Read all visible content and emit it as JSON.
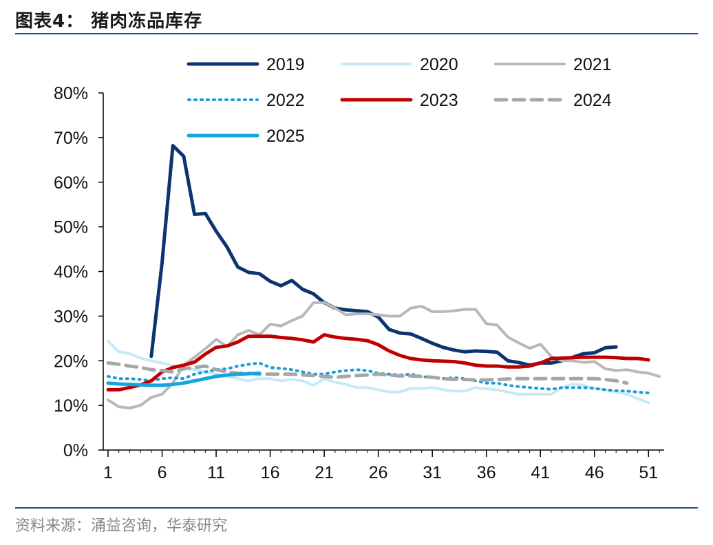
{
  "header": {
    "title": "图表4：  猪肉冻品库存"
  },
  "footer": {
    "source": "资料来源：涌益咨询，华泰研究"
  },
  "chart_data": {
    "type": "line",
    "title": "猪肉冻品库存",
    "xlabel": "",
    "ylabel": "",
    "xlim": [
      1,
      52
    ],
    "ylim": [
      0,
      0.8
    ],
    "x_ticks": [
      1,
      6,
      11,
      16,
      21,
      26,
      31,
      36,
      41,
      46,
      51
    ],
    "x_tick_labels": [
      "1",
      "6",
      "11",
      "16",
      "21",
      "26",
      "31",
      "36",
      "41",
      "46",
      "51"
    ],
    "y_ticks": [
      0,
      0.1,
      0.2,
      0.3,
      0.4,
      0.5,
      0.6,
      0.7,
      0.8
    ],
    "y_tick_labels": [
      "0%",
      "10%",
      "20%",
      "30%",
      "40%",
      "50%",
      "60%",
      "70%",
      "80%"
    ],
    "legend_position": "top",
    "series": [
      {
        "name": "2019",
        "color": "#0b3470",
        "style": "solid",
        "width": 5,
        "start": 5,
        "values": [
          0.21,
          0.42,
          0.682,
          0.658,
          0.528,
          0.53,
          0.49,
          0.455,
          0.41,
          0.398,
          0.395,
          0.378,
          0.368,
          0.38,
          0.36,
          0.35,
          0.33,
          0.318,
          0.314,
          0.312,
          0.31,
          0.298,
          0.27,
          0.262,
          0.26,
          0.25,
          0.239,
          0.23,
          0.224,
          0.22,
          0.222,
          0.221,
          0.219,
          0.2,
          0.196,
          0.19,
          0.195,
          0.195,
          0.2,
          0.208,
          0.216,
          0.218,
          0.229,
          0.231
        ]
      },
      {
        "name": "2020",
        "color": "#c5eaf7",
        "style": "solid",
        "width": 4,
        "start": 1,
        "values": [
          0.244,
          0.22,
          0.216,
          0.206,
          0.2,
          0.195,
          0.188,
          0.184,
          0.18,
          0.175,
          0.17,
          0.165,
          0.16,
          0.155,
          0.16,
          0.16,
          0.155,
          0.158,
          0.155,
          0.145,
          0.16,
          0.152,
          0.147,
          0.14,
          0.14,
          0.135,
          0.13,
          0.13,
          0.138,
          0.138,
          0.14,
          0.135,
          0.132,
          0.132,
          0.14,
          0.137,
          0.135,
          0.13,
          0.125,
          0.125,
          0.125,
          0.125,
          0.14,
          0.148,
          0.145,
          0.138,
          0.135,
          0.13,
          0.125,
          0.115,
          0.106
        ]
      },
      {
        "name": "2021",
        "color": "#b8b8b8",
        "style": "solid",
        "width": 4,
        "start": 1,
        "values": [
          0.112,
          0.097,
          0.094,
          0.1,
          0.118,
          0.125,
          0.15,
          0.19,
          0.208,
          0.227,
          0.248,
          0.232,
          0.258,
          0.268,
          0.258,
          0.282,
          0.278,
          0.29,
          0.3,
          0.33,
          0.33,
          0.318,
          0.303,
          0.305,
          0.305,
          0.303,
          0.3,
          0.3,
          0.318,
          0.322,
          0.31,
          0.31,
          0.312,
          0.315,
          0.315,
          0.283,
          0.28,
          0.253,
          0.24,
          0.228,
          0.237,
          0.21,
          0.2,
          0.2,
          0.196,
          0.198,
          0.182,
          0.178,
          0.18,
          0.175,
          0.172,
          0.165
        ]
      },
      {
        "name": "2022",
        "color": "#1b9cd8",
        "style": "dotted",
        "width": 4,
        "start": 1,
        "values": [
          0.165,
          0.16,
          0.16,
          0.158,
          0.155,
          0.16,
          0.162,
          0.16,
          0.17,
          0.175,
          0.18,
          0.182,
          0.188,
          0.192,
          0.195,
          0.185,
          0.183,
          0.18,
          0.175,
          0.17,
          0.17,
          0.175,
          0.178,
          0.18,
          0.178,
          0.172,
          0.17,
          0.168,
          0.17,
          0.165,
          0.162,
          0.16,
          0.162,
          0.16,
          0.155,
          0.15,
          0.15,
          0.145,
          0.142,
          0.14,
          0.138,
          0.136,
          0.14,
          0.14,
          0.14,
          0.138,
          0.135,
          0.133,
          0.132,
          0.13,
          0.128
        ]
      },
      {
        "name": "2023",
        "color": "#c00000",
        "style": "solid",
        "width": 5,
        "start": 1,
        "values": [
          0.135,
          0.135,
          0.14,
          0.146,
          0.155,
          0.175,
          0.185,
          0.19,
          0.197,
          0.215,
          0.23,
          0.233,
          0.242,
          0.255,
          0.255,
          0.255,
          0.252,
          0.25,
          0.247,
          0.242,
          0.258,
          0.253,
          0.25,
          0.248,
          0.245,
          0.236,
          0.222,
          0.212,
          0.205,
          0.202,
          0.2,
          0.199,
          0.198,
          0.195,
          0.19,
          0.188,
          0.188,
          0.186,
          0.186,
          0.188,
          0.195,
          0.205,
          0.206,
          0.207,
          0.208,
          0.208,
          0.208,
          0.207,
          0.205,
          0.205,
          0.202
        ]
      },
      {
        "name": "2024",
        "color": "#a6a6a6",
        "style": "dashed",
        "width": 5,
        "start": 1,
        "values": [
          0.195,
          0.192,
          0.188,
          0.185,
          0.18,
          0.178,
          0.175,
          0.182,
          0.185,
          0.188,
          0.18,
          0.175,
          0.172,
          0.172,
          0.17,
          0.17,
          0.17,
          0.17,
          0.168,
          0.167,
          0.165,
          0.163,
          0.165,
          0.167,
          0.168,
          0.17,
          0.168,
          0.166,
          0.166,
          0.165,
          0.163,
          0.16,
          0.158,
          0.158,
          0.157,
          0.157,
          0.158,
          0.159,
          0.16,
          0.16,
          0.16,
          0.16,
          0.16,
          0.16,
          0.16,
          0.16,
          0.158,
          0.155,
          0.15
        ]
      },
      {
        "name": "2025",
        "color": "#11a6df",
        "style": "solid",
        "width": 5,
        "start": 1,
        "values": [
          0.15,
          0.148,
          0.147,
          0.146,
          0.145,
          0.145,
          0.147,
          0.15,
          0.155,
          0.16,
          0.165,
          0.168,
          0.17,
          0.171,
          0.172
        ]
      }
    ]
  }
}
